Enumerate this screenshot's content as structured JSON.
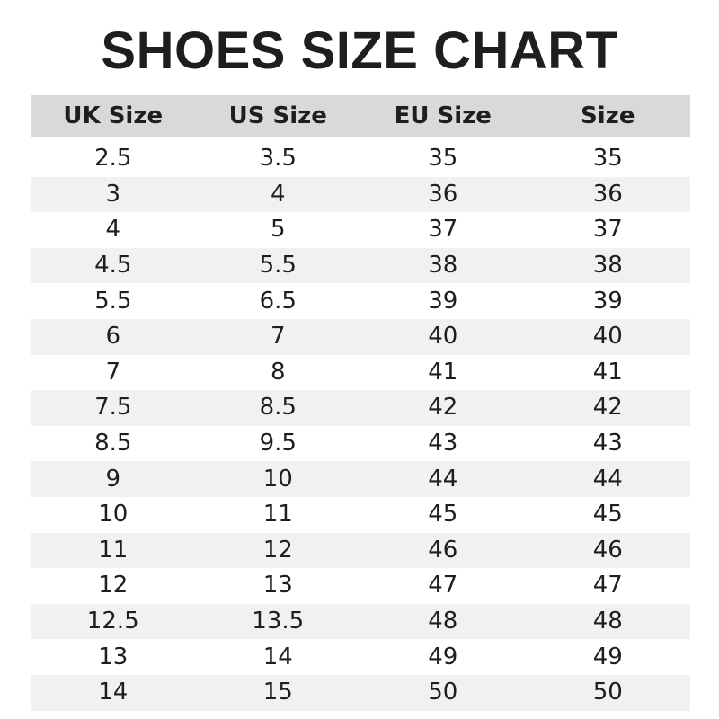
{
  "title": "SHOES SIZE CHART",
  "table": {
    "headers": [
      "UK Size",
      "US Size",
      "EU Size",
      "Size"
    ],
    "rows": [
      [
        "2.5",
        "3.5",
        "35",
        "35"
      ],
      [
        "3",
        "4",
        "36",
        "36"
      ],
      [
        "4",
        "5",
        "37",
        "37"
      ],
      [
        "4.5",
        "5.5",
        "38",
        "38"
      ],
      [
        "5.5",
        "6.5",
        "39",
        "39"
      ],
      [
        "6",
        "7",
        "40",
        "40"
      ],
      [
        "7",
        "8",
        "41",
        "41"
      ],
      [
        "7.5",
        "8.5",
        "42",
        "42"
      ],
      [
        "8.5",
        "9.5",
        "43",
        "43"
      ],
      [
        "9",
        "10",
        "44",
        "44"
      ],
      [
        "10",
        "11",
        "45",
        "45"
      ],
      [
        "11",
        "12",
        "46",
        "46"
      ],
      [
        "12",
        "13",
        "47",
        "47"
      ],
      [
        "12.5",
        "13.5",
        "48",
        "48"
      ],
      [
        "13",
        "14",
        "49",
        "49"
      ],
      [
        "14",
        "15",
        "50",
        "50"
      ]
    ]
  },
  "colors": {
    "header_bg": "#d9d9d9",
    "stripe_bg": "#f1f1f1",
    "text": "#1e1e1e"
  }
}
